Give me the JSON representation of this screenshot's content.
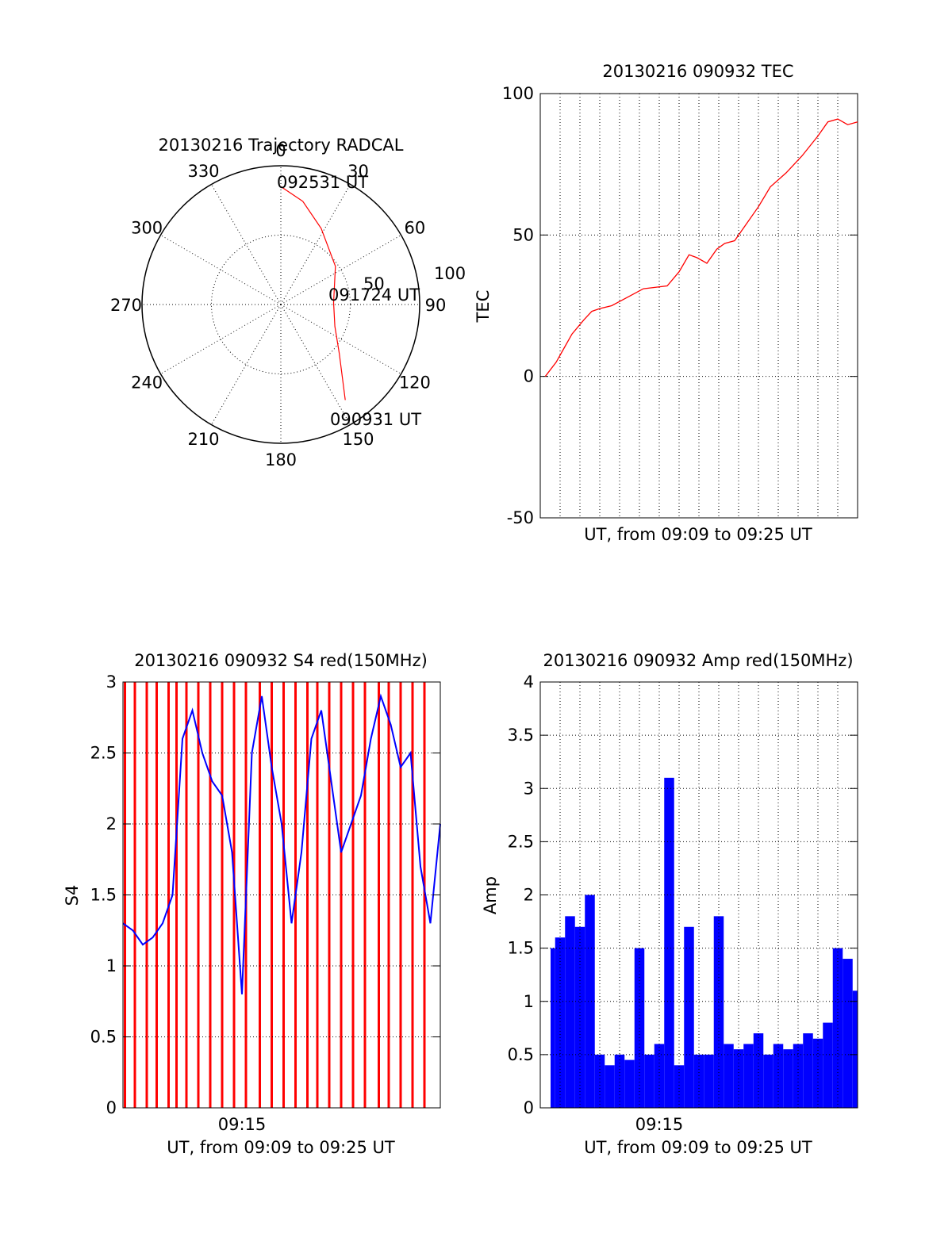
{
  "colors": {
    "red": "#ff0000",
    "blue": "#0000ff",
    "axis": "#000000"
  },
  "chart_data": [
    {
      "id": "trajectory",
      "type": "polar",
      "title": "20130216 Trajectory RADCAL",
      "angle_labels": [
        "0",
        "30",
        "60",
        "90",
        "120",
        "150",
        "180",
        "210",
        "240",
        "270",
        "300",
        "330"
      ],
      "radial_labels": [
        "50",
        "100"
      ],
      "rlim": [
        0,
        100
      ],
      "series": [
        {
          "color": "#ff0000",
          "points": [
            {
              "az": 0,
              "r": 85
            },
            {
              "az": 12,
              "r": 76
            },
            {
              "az": 28,
              "r": 62
            },
            {
              "az": 55,
              "r": 48
            },
            {
              "az": 88,
              "r": 38
            },
            {
              "az": 112,
              "r": 42
            },
            {
              "az": 130,
              "r": 55
            },
            {
              "az": 146,
              "r": 83
            }
          ]
        }
      ],
      "annotations": [
        {
          "text": "092531 UT",
          "az": 0,
          "r": 85
        },
        {
          "text": "091724 UT",
          "az": 88,
          "r": 38
        },
        {
          "text": "090931 UT",
          "az": 146,
          "r": 83
        }
      ]
    },
    {
      "id": "tec",
      "type": "line",
      "title": "20130216 090932 TEC",
      "ylabel": "TEC",
      "xlabel": "UT, from 09:09 to 09:25 UT",
      "ylim": [
        -50,
        100
      ],
      "yticks": [
        "100",
        "50",
        "0",
        "-50"
      ],
      "xlim": [
        0,
        16
      ],
      "series": [
        {
          "color": "#ff0000",
          "x": [
            0.25,
            0.8,
            1.2,
            1.6,
            2.2,
            2.6,
            3.0,
            3.6,
            4.4,
            5.2,
            6.4,
            7.0,
            7.5,
            7.9,
            8.4,
            8.9,
            9.3,
            9.8,
            10.4,
            11.0,
            11.6,
            12.4,
            13.2,
            14.0,
            14.5,
            15.0,
            15.5,
            16.0
          ],
          "y": [
            0,
            5,
            10,
            15,
            20,
            23,
            24,
            25,
            28,
            31,
            32,
            37,
            43,
            42,
            40,
            45,
            47,
            48,
            54,
            60,
            67,
            72,
            78,
            85,
            90,
            91,
            89,
            90
          ]
        }
      ]
    },
    {
      "id": "s4",
      "type": "line",
      "title": "20130216 090932 S4 red(150MHz)",
      "ylabel": "S4",
      "xlabel": "UT, from 09:09 to 09:25 UT",
      "xtick_labels": [
        "09:15"
      ],
      "xtick_values": [
        6
      ],
      "ylim": [
        0,
        3
      ],
      "yticks": [
        "3",
        "2.5",
        "2",
        "1.5",
        "1",
        "0.5",
        "0"
      ],
      "xlim": [
        0,
        16
      ],
      "series": [
        {
          "color": "#0000ff",
          "x": [
            0,
            0.5,
            1,
            1.5,
            2,
            2.5,
            3,
            3.5,
            4,
            4.5,
            5,
            5.5,
            6,
            6.5,
            7,
            7.5,
            8,
            8.5,
            9,
            9.5,
            10,
            10.5,
            11,
            11.5,
            12,
            12.5,
            13,
            13.5,
            14,
            14.5,
            15,
            15.5,
            16
          ],
          "y": [
            1.3,
            1.25,
            1.15,
            1.2,
            1.3,
            1.5,
            2.6,
            2.8,
            2.5,
            2.3,
            2.2,
            1.8,
            0.8,
            2.5,
            2.9,
            2.4,
            2.0,
            1.3,
            1.8,
            2.6,
            2.8,
            2.3,
            1.8,
            2.0,
            2.2,
            2.6,
            2.9,
            2.7,
            2.4,
            2.5,
            1.7,
            1.3,
            2.0
          ]
        },
        {
          "color": "#ff0000",
          "x": [
            0.1,
            0.6,
            1.2,
            1.7,
            2.3,
            2.7,
            3.2,
            3.8,
            4.4,
            5.0,
            5.6,
            6.2,
            6.9,
            7.5,
            8.1,
            8.7,
            9.3,
            9.8,
            10.4,
            11.0,
            11.6,
            12.2,
            12.9,
            13.4,
            14.0,
            14.6,
            15.2
          ],
          "y": [
            3,
            3,
            3,
            3,
            3,
            3,
            3,
            3,
            3,
            3,
            3,
            3,
            3,
            3,
            3,
            3,
            3,
            3,
            3,
            3,
            3,
            3,
            3,
            3,
            3,
            3,
            3
          ]
        }
      ]
    },
    {
      "id": "amp",
      "type": "bar",
      "title": "20130216 090932 Amp red(150MHz)",
      "ylabel": "Amp",
      "xlabel": "UT, from 09:09 to 09:25 UT",
      "xtick_labels": [
        "09:15"
      ],
      "xtick_values": [
        6
      ],
      "ylim": [
        0,
        4
      ],
      "yticks": [
        "4",
        "3.5",
        "3",
        "2.5",
        "2",
        "1.5",
        "1",
        "0.5",
        "0"
      ],
      "xlim": [
        0,
        16
      ],
      "series": [
        {
          "color": "#0000ff",
          "x": [
            0,
            0.5,
            1,
            1.5,
            2,
            2.5,
            3,
            3.5,
            4,
            4.5,
            5,
            5.5,
            6,
            6.5,
            7,
            7.5,
            8,
            8.5,
            9,
            9.5,
            10,
            10.5,
            11,
            11.5,
            12,
            12.5,
            13,
            13.5,
            14,
            14.5,
            15,
            15.5,
            16
          ],
          "y": [
            1.2,
            1.5,
            1.6,
            1.8,
            1.7,
            2.0,
            0.5,
            0.4,
            0.5,
            0.45,
            1.5,
            0.5,
            0.6,
            3.1,
            0.4,
            1.7,
            0.5,
            0.5,
            1.8,
            0.6,
            0.55,
            0.6,
            0.7,
            0.5,
            0.6,
            0.55,
            0.6,
            0.7,
            0.65,
            0.8,
            1.5,
            1.4,
            1.1
          ]
        }
      ]
    }
  ]
}
